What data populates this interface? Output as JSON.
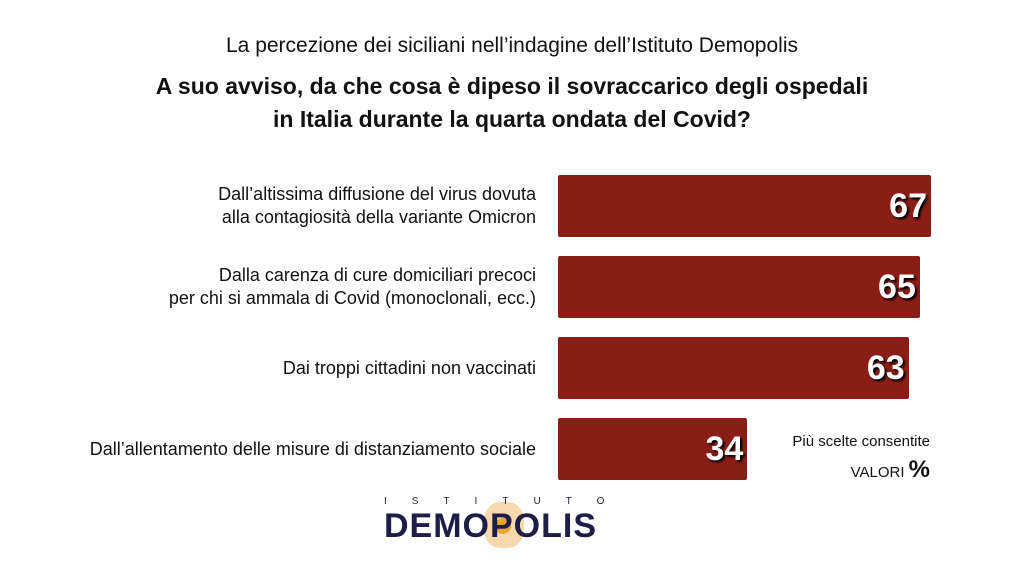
{
  "header": "La percezione dei siciliani nell’indagine dell’Istituto Demopolis",
  "question": [
    "A suo avviso, da che cosa è dipeso il sovraccarico degli ospedali",
    "in Italia durante la quarta ondata del Covid?"
  ],
  "chart_data": {
    "type": "bar",
    "orientation": "horizontal",
    "title": "A suo avviso, da che cosa è dipeso il sovraccarico degli ospedali in Italia durante la quarta ondata del Covid?",
    "categories": [
      [
        "Dall’altissima diffusione del virus dovuta",
        "alla contagiosità della variante Omicron"
      ],
      [
        "Dalla carenza di cure domiciliari precoci",
        "per chi si ammala di Covid (monoclonali, ecc.)"
      ],
      [
        "Dai troppi cittadini non vaccinati"
      ],
      [
        "Dall’allentamento delle misure di distanziamento sociale"
      ]
    ],
    "values": [
      67,
      65,
      63,
      34
    ],
    "unit": "%",
    "bar_color": "#8b1d17",
    "grid": false
  },
  "note": "Più scelte consentite",
  "unit_label": "VALORI",
  "unit_symbol": "%",
  "logo": {
    "top": "ISTITUTO",
    "main": "DEMOPOLIS",
    "color": "#1e1d45",
    "accent": "#e8a33a"
  }
}
